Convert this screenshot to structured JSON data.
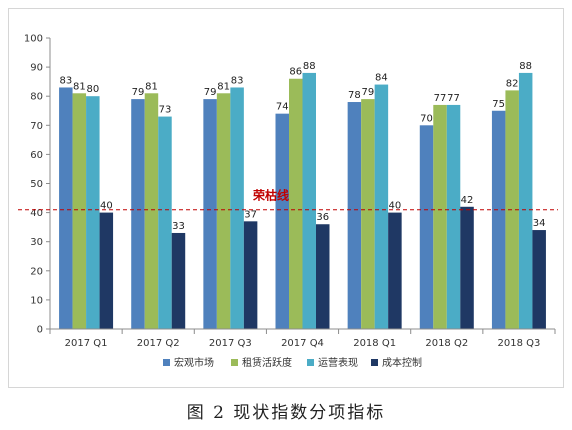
{
  "caption": "图 2   现状指数分项指标",
  "chart_data": {
    "type": "bar",
    "categories": [
      "2017 Q1",
      "2017 Q2",
      "2017 Q3",
      "2017 Q4",
      "2018 Q1",
      "2018 Q2",
      "2018 Q3"
    ],
    "series": [
      {
        "name": "宏观市场",
        "color": "#4f81bd",
        "values": [
          83,
          79,
          79,
          74,
          78,
          70,
          75
        ]
      },
      {
        "name": "租赁活跃度",
        "color": "#9bbb59",
        "values": [
          81,
          81,
          81,
          86,
          79,
          77,
          82
        ]
      },
      {
        "name": "运营表现",
        "color": "#4bacc6",
        "values": [
          80,
          73,
          83,
          88,
          84,
          77,
          88
        ]
      },
      {
        "name": "成本控制",
        "color": "#1f3864",
        "values": [
          40,
          33,
          37,
          36,
          40,
          42,
          34
        ]
      }
    ],
    "ylim": [
      0,
      100
    ],
    "yticks": [
      0,
      10,
      20,
      30,
      40,
      50,
      60,
      70,
      80,
      90,
      100
    ],
    "reference_line": {
      "value": 41,
      "label": "荣枯线",
      "color": "#c00000"
    },
    "legend": "bottom",
    "grid": false
  }
}
